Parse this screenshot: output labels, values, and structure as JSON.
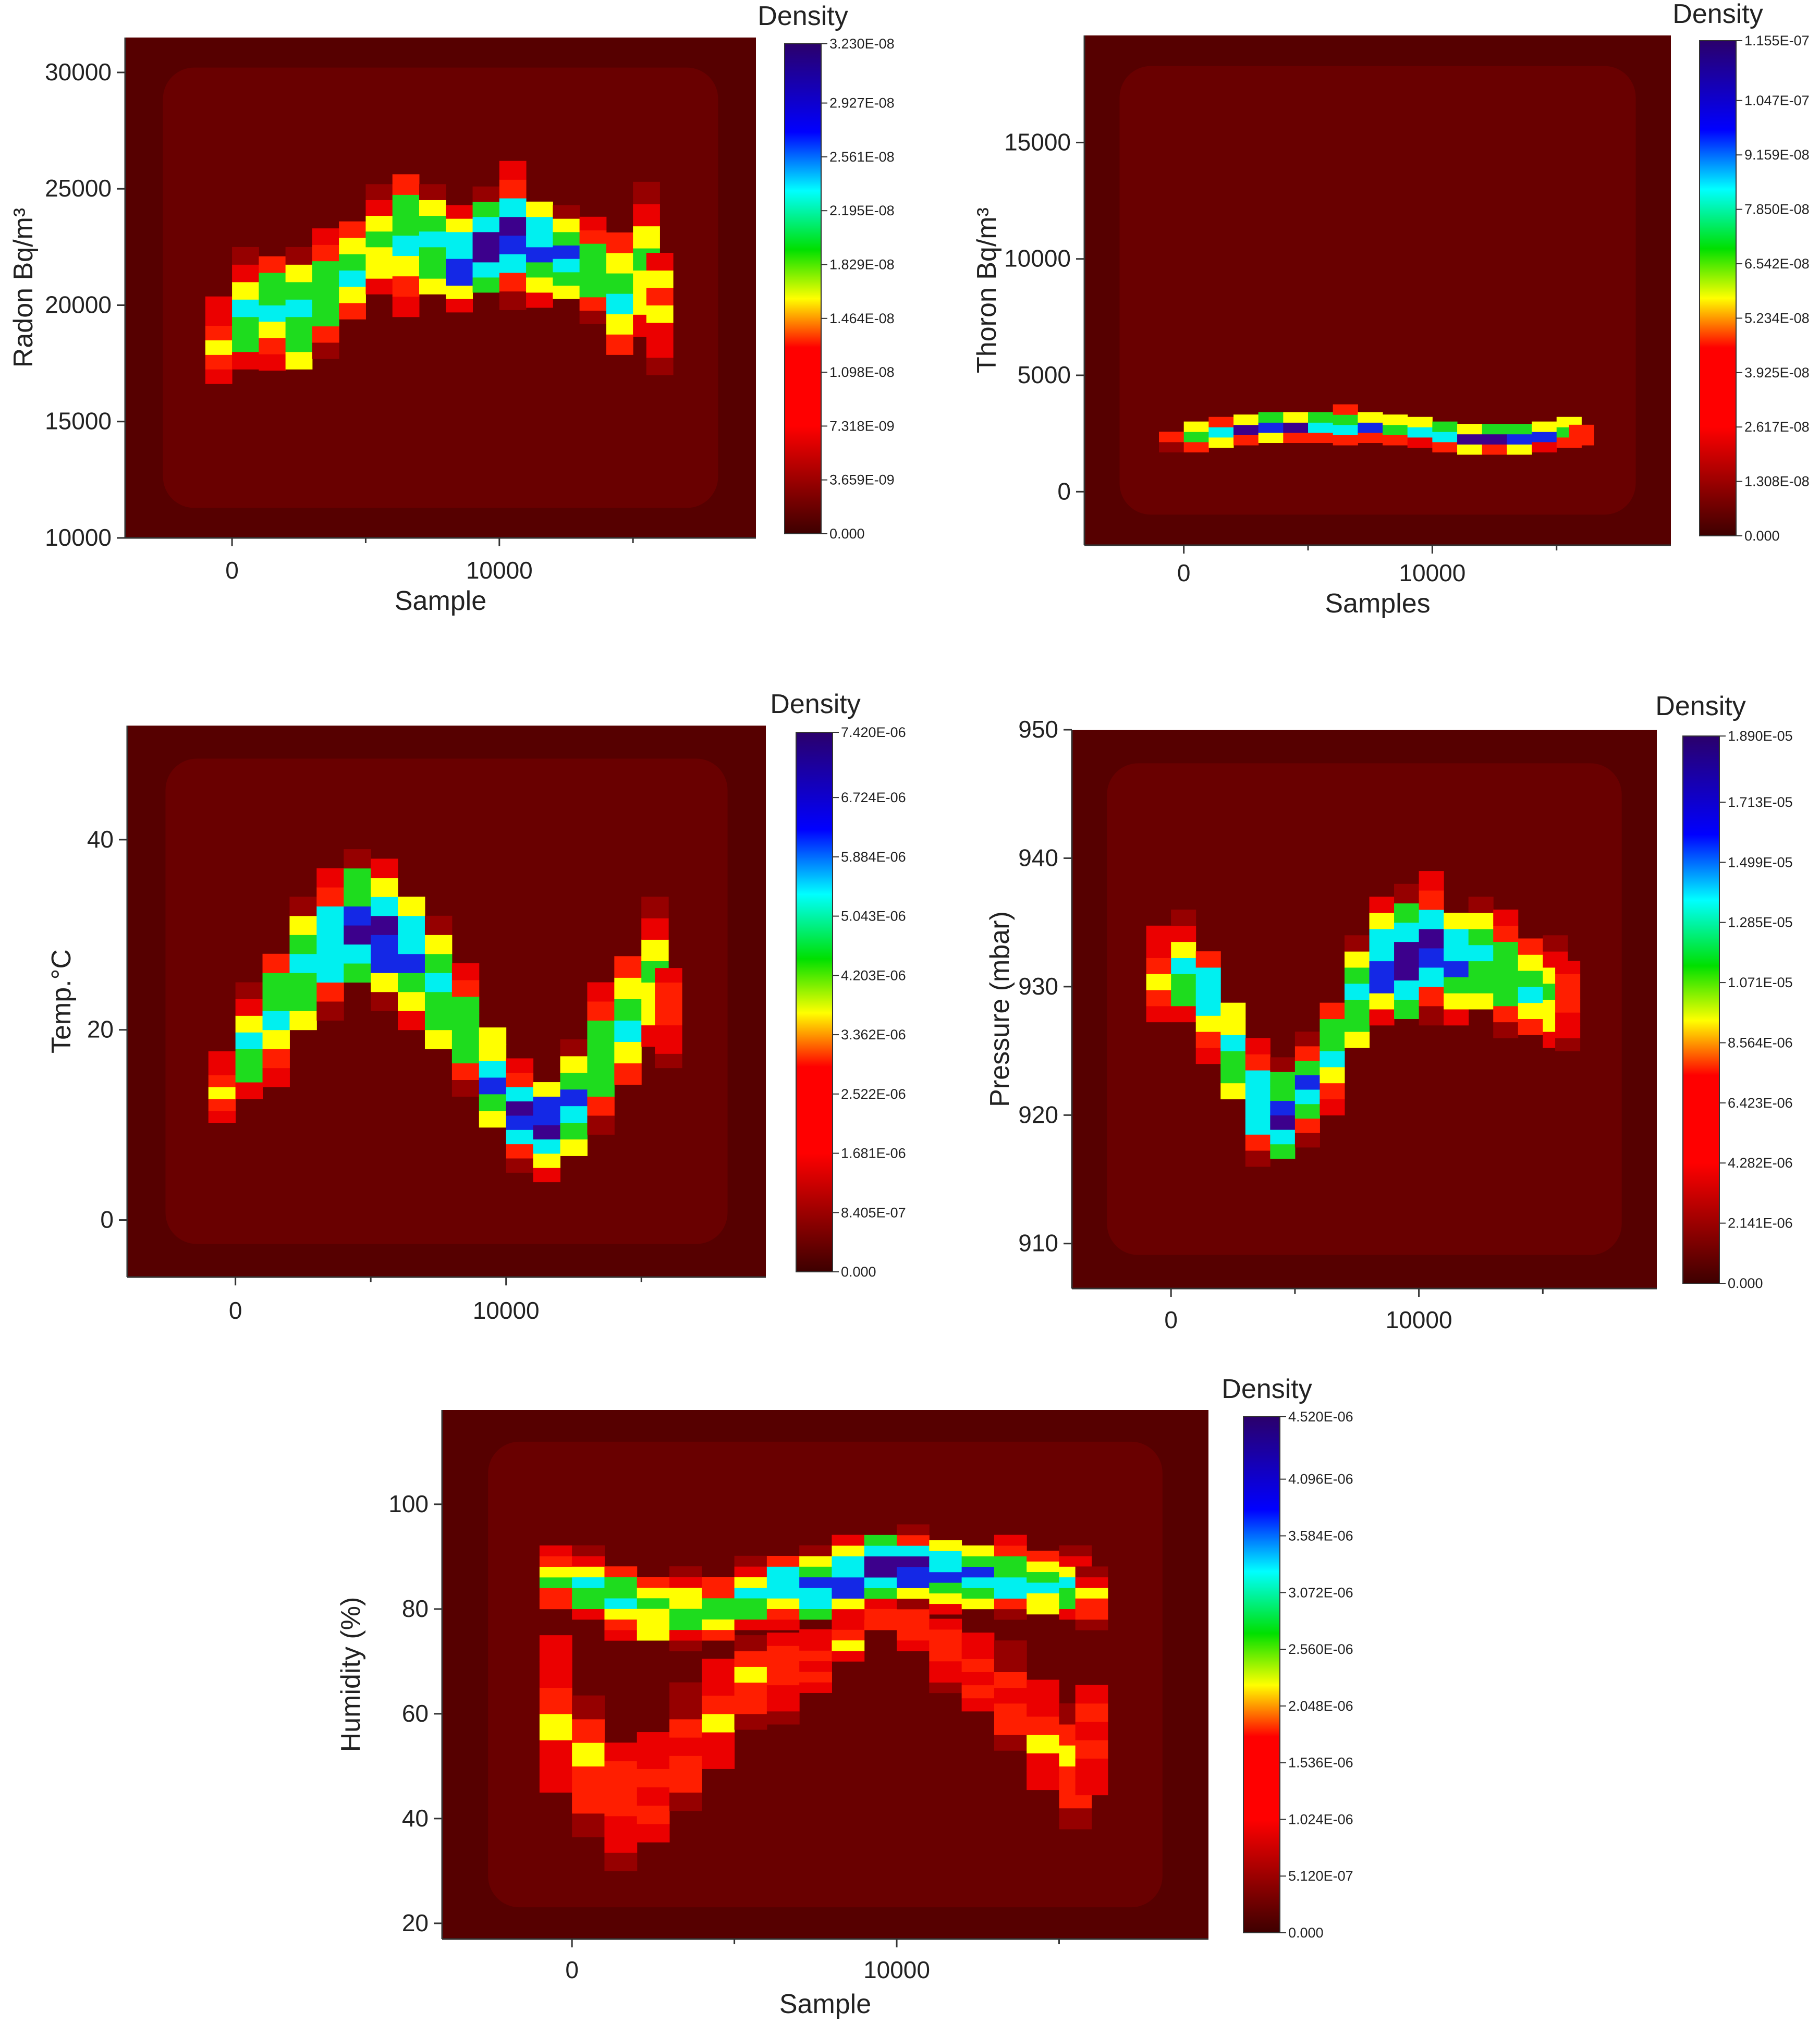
{
  "colors": {
    "background": "#5c0000",
    "colorbar_stops": [
      "#3d0000",
      "#8a0000",
      "#ff0000",
      "#ff0000",
      "#ffff00",
      "#00e000",
      "#00ffff",
      "#0000ff",
      "#2b006b"
    ]
  },
  "chart_data": [
    {
      "type": "heatmap",
      "name": "radon",
      "xlabel": "Sample",
      "ylabel": "Radon Bq/m³",
      "xlim": [
        -4000,
        19600
      ],
      "ylim": [
        10000,
        31500
      ],
      "xticks": [
        0,
        10000
      ],
      "yticks": [
        10000,
        15000,
        20000,
        25000,
        30000
      ],
      "colorbar": {
        "title": "Density",
        "labels": [
          "0.000",
          "3.659E-09",
          "7.318E-09",
          "1.098E-08",
          "1.464E-08",
          "1.829E-08",
          "2.195E-08",
          "2.561E-08",
          "2.927E-08",
          "3.230E-08"
        ]
      },
      "density_band": {
        "x": [
          -500,
          500,
          1500,
          2500,
          3500,
          4500,
          5500,
          6500,
          7500,
          8500,
          9500,
          10500,
          11500,
          12500,
          13500,
          14500,
          15500,
          16000
        ],
        "center": [
          18500,
          19500,
          20000,
          19500,
          20500,
          21500,
          22500,
          23000,
          22500,
          22000,
          22500,
          23000,
          22500,
          22000,
          21500,
          20500,
          21500,
          20000
        ],
        "half_width": [
          2500,
          3000,
          2800,
          3000,
          2800,
          2800,
          2700,
          3500,
          2700,
          2300,
          2600,
          3200,
          2600,
          2300,
          2300,
          3500,
          3800,
          3000
        ],
        "peak": [
          0.5,
          0.7,
          0.75,
          0.8,
          0.75,
          0.7,
          0.65,
          0.75,
          0.8,
          0.95,
          1.0,
          0.95,
          0.9,
          0.85,
          0.75,
          0.7,
          0.65,
          0.5
        ]
      }
    },
    {
      "type": "heatmap",
      "name": "thoron",
      "xlabel": "Samples",
      "ylabel": "Thoron Bq/m³",
      "xlim": [
        -4000,
        19600
      ],
      "ylim": [
        -2300,
        19600
      ],
      "xticks": [
        0,
        10000
      ],
      "yticks": [
        0,
        5000,
        10000,
        15000
      ],
      "colorbar": {
        "title": "Density",
        "labels": [
          "0.000",
          "1.308E-08",
          "2.617E-08",
          "3.925E-08",
          "5.234E-08",
          "6.542E-08",
          "7.850E-08",
          "9.159E-08",
          "1.047E-07",
          "1.155E-07"
        ]
      },
      "density_band": {
        "x": [
          -500,
          500,
          1500,
          2500,
          3500,
          4500,
          5500,
          6500,
          7500,
          8500,
          9500,
          10500,
          11500,
          12500,
          13500,
          14500,
          15500,
          16000
        ],
        "center": [
          2200,
          2400,
          2600,
          2700,
          2800,
          2800,
          2800,
          2900,
          2800,
          2700,
          2600,
          2400,
          2300,
          2300,
          2300,
          2400,
          2600,
          2500
        ],
        "half_width": [
          500,
          700,
          700,
          700,
          700,
          700,
          700,
          900,
          700,
          700,
          700,
          700,
          700,
          700,
          700,
          700,
          700,
          500
        ],
        "peak": [
          0.4,
          0.75,
          0.85,
          0.9,
          0.95,
          0.95,
          0.9,
          0.8,
          0.8,
          0.75,
          0.8,
          0.9,
          1.0,
          1.0,
          0.95,
          0.85,
          0.75,
          0.5
        ]
      }
    },
    {
      "type": "heatmap",
      "name": "temperature",
      "xlabel": "",
      "ylabel": "Temp.°C",
      "xlim": [
        -4000,
        19600
      ],
      "ylim": [
        -6000,
        52000
      ],
      "xticks": [
        0,
        10000
      ],
      "yticks": [
        0,
        20,
        40
      ],
      "colorbar": {
        "title": "Density",
        "labels": [
          "0.000",
          "8.405E-07",
          "1.681E-06",
          "2.522E-06",
          "3.362E-06",
          "4.203E-06",
          "5.043E-06",
          "5.884E-06",
          "6.724E-06",
          "7.420E-06"
        ]
      },
      "density_band": {
        "x": [
          -500,
          500,
          1500,
          2500,
          3500,
          4500,
          5500,
          6500,
          7500,
          8500,
          9500,
          10500,
          11500,
          12500,
          13500,
          14500,
          15500,
          16000
        ],
        "center": [
          14,
          18,
          22,
          26,
          29,
          31,
          30,
          28,
          24,
          20,
          15,
          11,
          10,
          12,
          17,
          21,
          25,
          22
        ],
        "half_width": [
          5,
          7,
          8,
          8,
          8,
          8,
          8,
          8,
          8,
          7,
          7,
          6,
          6,
          7,
          8,
          9,
          9,
          6
        ],
        "peak": [
          0.5,
          0.7,
          0.75,
          0.8,
          0.85,
          0.95,
          1.0,
          0.9,
          0.8,
          0.75,
          0.8,
          0.95,
          1.0,
          0.85,
          0.75,
          0.7,
          0.6,
          0.45
        ]
      }
    },
    {
      "type": "heatmap",
      "name": "pressure",
      "xlabel": "",
      "ylabel": "Pressure (mbar)",
      "xlim": [
        -4000,
        19600
      ],
      "ylim": [
        906.5,
        950
      ],
      "xticks": [
        0,
        10000
      ],
      "yticks": [
        910,
        920,
        930,
        940,
        950
      ],
      "colorbar": {
        "title": "Density",
        "labels": [
          "0.000",
          "2.141E-06",
          "4.282E-06",
          "6.423E-06",
          "8.564E-06",
          "1.071E-05",
          "1.285E-05",
          "1.499E-05",
          "1.713E-05",
          "1.890E-05"
        ]
      },
      "density_band": {
        "x": [
          -500,
          500,
          1500,
          2500,
          3500,
          4500,
          5500,
          6500,
          7500,
          8500,
          9500,
          10500,
          11500,
          12500,
          13500,
          14500,
          15500,
          16000
        ],
        "center": [
          931,
          931,
          929,
          925,
          921,
          920,
          922,
          925,
          929,
          932,
          932,
          933,
          932,
          932,
          931,
          930,
          929,
          929
        ],
        "half_width": [
          5,
          5,
          5,
          5,
          5,
          4.5,
          4.5,
          5,
          5,
          5,
          6,
          6,
          5,
          5,
          5,
          5,
          5,
          4
        ],
        "peak": [
          0.5,
          0.7,
          0.8,
          0.75,
          0.85,
          0.95,
          0.8,
          0.75,
          0.8,
          0.95,
          1.0,
          0.95,
          0.9,
          0.8,
          0.75,
          0.7,
          0.6,
          0.45
        ]
      }
    },
    {
      "type": "heatmap",
      "name": "humidity",
      "xlabel": "Sample",
      "ylabel": "Humidity (%)",
      "xlim": [
        -4000,
        19600
      ],
      "ylim": [
        17000,
        118000
      ],
      "xticks": [
        0,
        10000
      ],
      "yticks": [
        20,
        40,
        60,
        80,
        100
      ],
      "colorbar": {
        "title": "Density",
        "labels": [
          "0.000",
          "5.120E-07",
          "1.024E-06",
          "1.536E-06",
          "2.048E-06",
          "2.560E-06",
          "3.072E-06",
          "3.584E-06",
          "4.096E-06",
          "4.520E-06"
        ]
      },
      "density_band": {
        "x": [
          -500,
          500,
          1500,
          2500,
          3500,
          4500,
          5500,
          6500,
          7500,
          8500,
          9500,
          10500,
          11500,
          12500,
          13500,
          14500,
          15500,
          16000
        ],
        "center": [
          86,
          84,
          82,
          80,
          80,
          80,
          82,
          84,
          84,
          86,
          88,
          88,
          87,
          86,
          86,
          85,
          84,
          82
        ],
        "half_width": [
          8,
          8,
          8,
          8,
          8,
          8,
          8,
          8,
          8,
          8,
          8,
          8,
          8,
          8,
          8,
          8,
          8,
          6
        ],
        "peak": [
          0.55,
          0.7,
          0.75,
          0.7,
          0.65,
          0.65,
          0.7,
          0.8,
          0.9,
          0.95,
          1.0,
          0.95,
          0.9,
          0.85,
          0.8,
          0.75,
          0.7,
          0.5
        ],
        "tail": {
          "x": [
            -500,
            500,
            1500,
            2500,
            3500,
            4500,
            5500,
            6500,
            7500,
            8500,
            9500,
            10500,
            11500,
            12500,
            13500,
            14500,
            15500,
            16000
          ],
          "center": [
            60,
            50,
            44,
            46,
            52,
            60,
            66,
            68,
            70,
            74,
            78,
            76,
            72,
            68,
            62,
            56,
            50,
            55
          ],
          "half_width": [
            20,
            18,
            14,
            14,
            14,
            14,
            12,
            10,
            8,
            6,
            4,
            6,
            8,
            10,
            12,
            14,
            16,
            14
          ],
          "peak": [
            0.45,
            0.45,
            0.45,
            0.45,
            0.45,
            0.45,
            0.45,
            0.45,
            0.45,
            0.45,
            0.45,
            0.45,
            0.45,
            0.45,
            0.45,
            0.45,
            0.45,
            0.4
          ]
        }
      }
    }
  ]
}
